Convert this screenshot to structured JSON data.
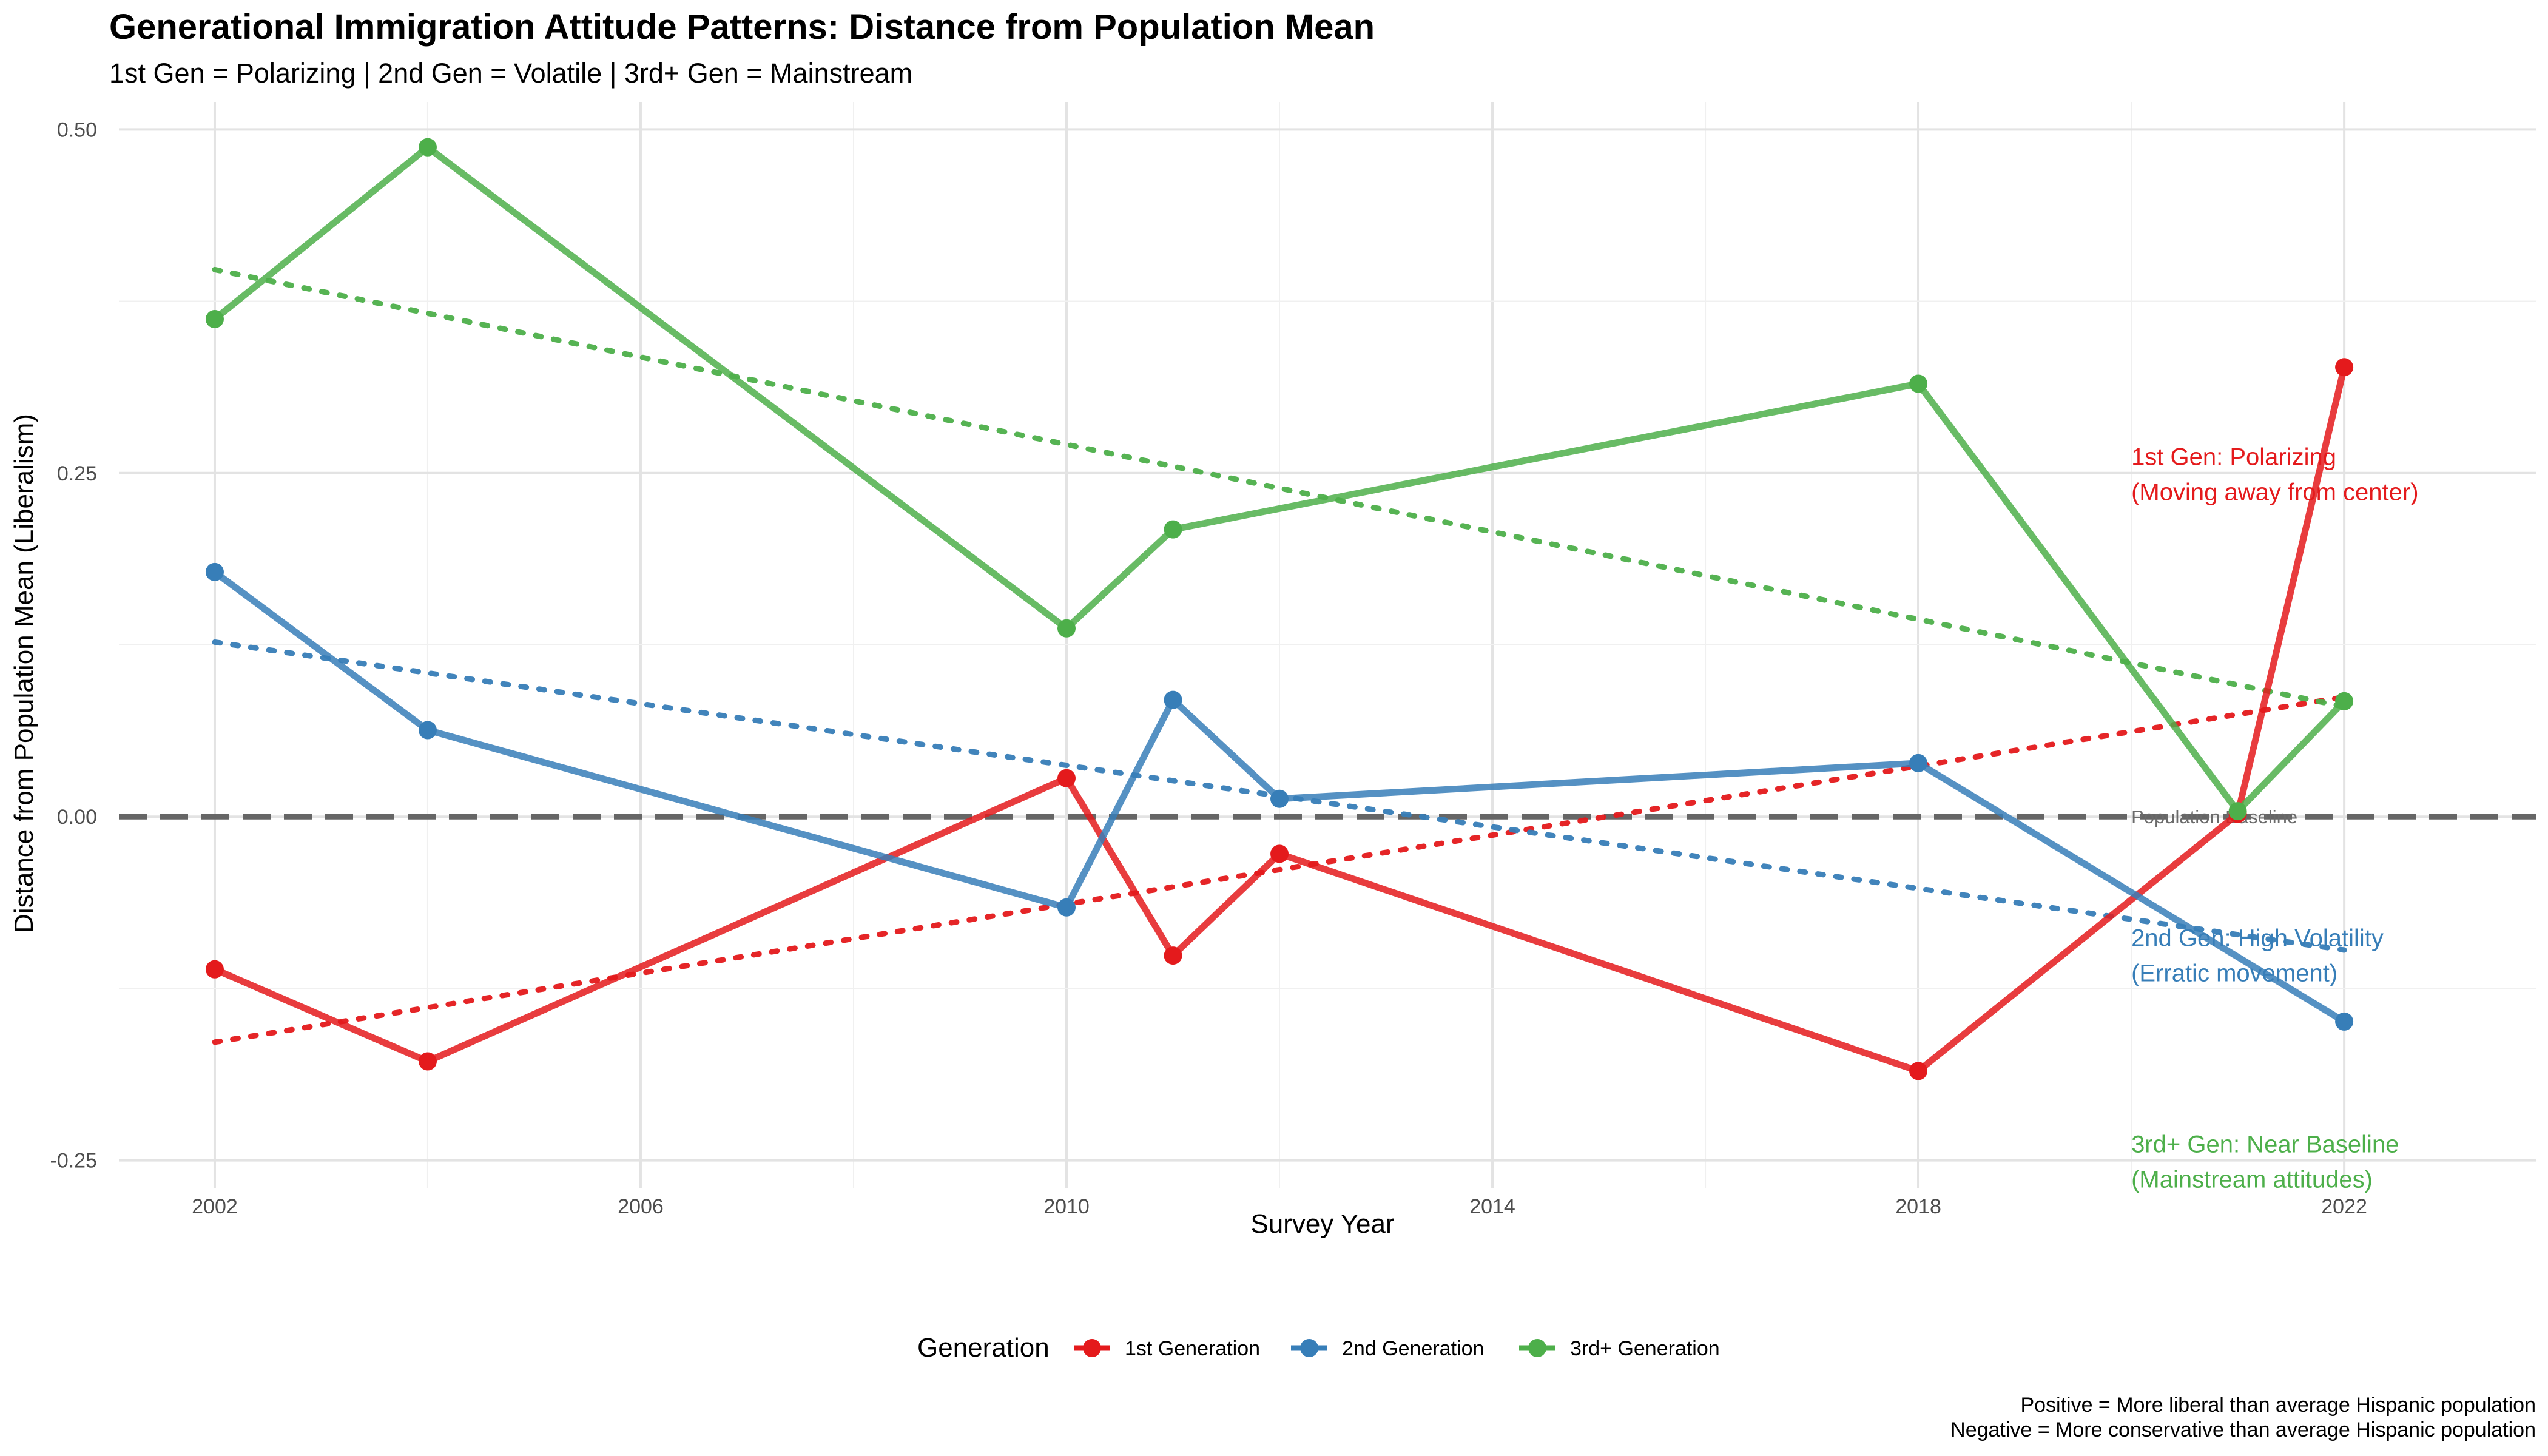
{
  "chart_data": {
    "type": "line",
    "title": "Generational Immigration Attitude Patterns: Distance from Population Mean",
    "subtitle": "1st Gen = Polarizing | 2nd Gen = Volatile | 3rd+ Gen = Mainstream",
    "xlabel": "Survey Year",
    "ylabel": "Distance from Population Mean (Liberalism)",
    "xlim": [
      2001.1,
      2023.8
    ],
    "ylim": [
      -0.27,
      0.52
    ],
    "xticks": [
      2002,
      2006,
      2010,
      2014,
      2018,
      2022
    ],
    "yticks": [
      -0.25,
      0,
      0.25,
      0.5
    ],
    "ytick_labels": [
      "-0.25",
      "0.00",
      "0.25",
      "0.50"
    ],
    "grid": true,
    "legend": {
      "title": "Generation",
      "position": "bottom"
    },
    "series": [
      {
        "name": "1st Generation",
        "color": "#e41a1c",
        "x": [
          2002,
          2004,
          2010,
          2011,
          2012,
          2018,
          2021,
          2022
        ],
        "y": [
          -0.111,
          -0.178,
          0.028,
          -0.101,
          -0.027,
          -0.185,
          0.002,
          0.327
        ],
        "trend": [
          [
            2002,
            -0.164
          ],
          [
            2022,
            0.087
          ]
        ]
      },
      {
        "name": "2nd Generation",
        "color": "#377eb8",
        "x": [
          2002,
          2004,
          2010,
          2011,
          2012,
          2018,
          2022
        ],
        "y": [
          0.178,
          0.063,
          -0.066,
          0.085,
          0.013,
          0.039,
          -0.149
        ],
        "trend": [
          [
            2002,
            0.127
          ],
          [
            2022,
            -0.097
          ]
        ]
      },
      {
        "name": "3rd+ Generation",
        "color": "#4daf4a",
        "x": [
          2002,
          2004,
          2010,
          2011,
          2018,
          2021,
          2022
        ],
        "y": [
          0.362,
          0.487,
          0.137,
          0.209,
          0.315,
          0.004,
          0.084
        ],
        "trend": [
          [
            2002,
            0.398
          ],
          [
            2022,
            0.08
          ]
        ]
      }
    ],
    "reference_line": {
      "y": 0,
      "label": "Population Baseline",
      "color": "#666666"
    },
    "annotations": [
      {
        "lines": [
          "1st Gen: Polarizing",
          "(Moving away from center)"
        ],
        "x": 2020,
        "y": 0.262,
        "color": "#e41a1c"
      },
      {
        "lines": [
          "2nd Gen: High Volatility",
          "(Erratic movement)"
        ],
        "x": 2020,
        "y": -0.088,
        "color": "#377eb8"
      },
      {
        "lines": [
          "3rd+ Gen: Near Baseline",
          "(Mainstream attitudes)"
        ],
        "x": 2020,
        "y": -0.238,
        "color": "#4daf4a"
      }
    ],
    "caption": [
      "Positive = More liberal than average Hispanic population",
      "Negative = More conservative than average Hispanic population"
    ]
  }
}
